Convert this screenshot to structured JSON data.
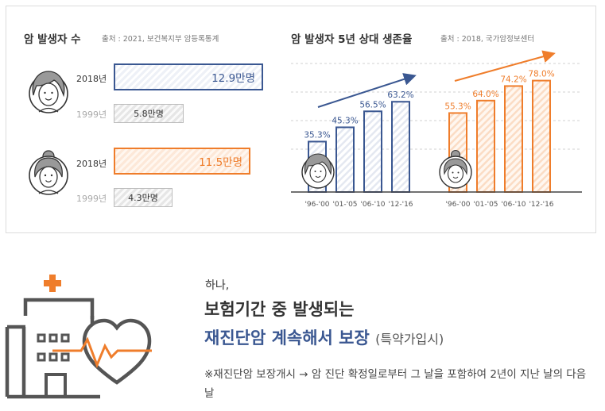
{
  "left_panel": {
    "title": "암 발생자 수",
    "source": "출처 : 2021, 보건복지부 암등록통계",
    "groups": [
      {
        "year_recent": "2018년",
        "value_recent": "12.9만명",
        "year_old": "1999년",
        "value_old": "5.8만명",
        "color": "#3a5791"
      },
      {
        "year_recent": "2018년",
        "value_recent": "11.5만명",
        "year_old": "1999년",
        "value_old": "4.3만명",
        "color": "#ef7d2b"
      }
    ]
  },
  "right_panel": {
    "title": "암 발생자 5년 상대 생존율",
    "source": "출처 : 2018, 국가암정보센터"
  },
  "chart_data": {
    "type": "bar",
    "categories": [
      "'96-'00",
      "'01-'05",
      "'06-'10",
      "'12-'16"
    ],
    "series": [
      {
        "values": [
          35.3,
          45.3,
          56.5,
          63.2
        ],
        "labels": [
          "35.3%",
          "45.3%",
          "56.5%",
          "63.2%"
        ],
        "color": "#3a5791"
      },
      {
        "values": [
          55.3,
          64.0,
          74.2,
          78.0
        ],
        "labels": [
          "55.3%",
          "64.0%",
          "74.2%",
          "78.0%"
        ],
        "color": "#ef7d2b"
      }
    ],
    "ylim": [
      0,
      100
    ],
    "grid": true,
    "trend_arrows": true
  },
  "promo": {
    "line1": "하나,",
    "line2": "보험기간 중 발생되는",
    "line3_main": "재진단암 계속해서 보장",
    "line3_tag": "(특약가입시)",
    "note": "※재진단암 보장개시 → 암 진단 확정일로부터 그 날을 포함하여 2년이 지난 날의 다음 날"
  },
  "colors": {
    "blue": "#3a5791",
    "orange": "#ef7d2b",
    "gray": "#555555"
  }
}
